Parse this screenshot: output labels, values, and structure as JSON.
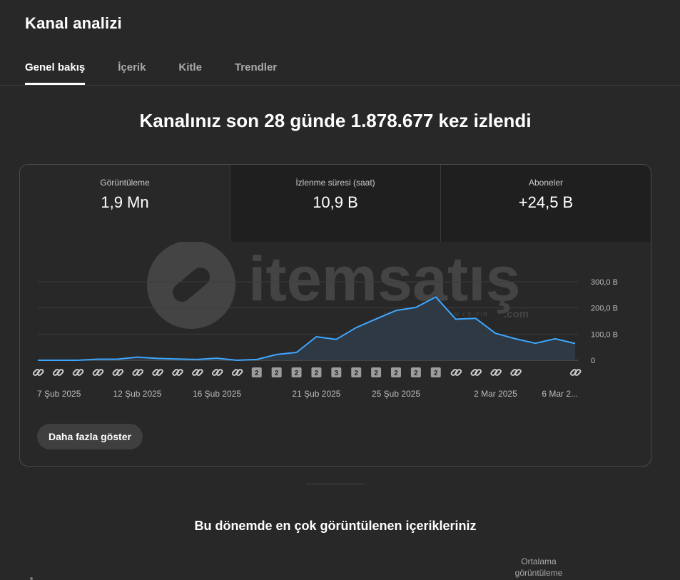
{
  "page": {
    "title": "Kanal analizi"
  },
  "tabs": [
    {
      "label": "Genel bakış",
      "active": true
    },
    {
      "label": "İçerik",
      "active": false
    },
    {
      "label": "Kitle",
      "active": false
    },
    {
      "label": "Trendler",
      "active": false
    }
  ],
  "headline": "Kanalınız son 28 günde 1.878.677 kez izlendi",
  "metrics": [
    {
      "label": "Görüntüleme",
      "value": "1,9 Mn"
    },
    {
      "label": "İzlenme süresi (saat)",
      "value": "10,9 B"
    },
    {
      "label": "Aboneler",
      "value": "+24,5 B"
    }
  ],
  "watermark": {
    "brand": "itemsatış",
    "tagline": "HESAP / SKIN / İTEM / E-PİN",
    "suffix": ".com"
  },
  "chart_data": {
    "type": "area",
    "y_ticks": [
      "0",
      "100,0 B",
      "200,0 B",
      "300,0 B"
    ],
    "ylim": [
      0,
      300000
    ],
    "x_labels": [
      "7 Şub 2025",
      "12 Şub 2025",
      "16 Şub 2025",
      "21 Şub 2025",
      "25 Şub 2025",
      "2 Mar 2025",
      "6 Mar 2..."
    ],
    "x_label_days": [
      0,
      5,
      9,
      14,
      18,
      23,
      27
    ],
    "grid": true,
    "line_color": "#3ea6ff",
    "fill_color": "#2f3b46",
    "series": [
      {
        "values": [
          0,
          0,
          0,
          4000,
          4000,
          12000,
          7000,
          5000,
          3000,
          8000,
          0,
          3000,
          22000,
          30000,
          90000,
          80000,
          125000,
          158000,
          190000,
          202000,
          242000,
          157000,
          160000,
          103000,
          82000,
          65000,
          82000,
          64000
        ]
      }
    ],
    "markers": [
      "link",
      "link",
      "link",
      "link",
      "link",
      "link",
      "link",
      "link",
      "link",
      "link",
      "link",
      "2",
      "2",
      "2",
      "2",
      "3",
      "2",
      "2",
      "2",
      "2",
      "2",
      "link",
      "link",
      "link",
      "link",
      "",
      "",
      "link"
    ]
  },
  "buttons": {
    "more": "Daha fazla göster"
  },
  "section": {
    "title": "Bu dönemde en çok görüntülenen içerikleriniz",
    "col_header_line1": "Ortalama",
    "col_header_line2": "görüntüleme"
  }
}
